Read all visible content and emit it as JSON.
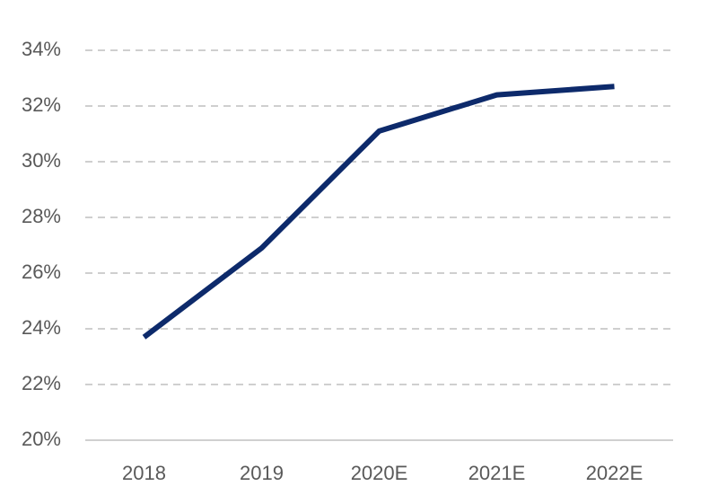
{
  "chart_data": {
    "type": "line",
    "categories": [
      "2018",
      "2019",
      "2020E",
      "2021E",
      "2022E"
    ],
    "series": [
      {
        "color": "#0d2a6b",
        "values": [
          23.7,
          26.9,
          31.1,
          32.4,
          32.7
        ]
      }
    ],
    "ylim": [
      20,
      34
    ],
    "yticks": [
      {
        "value": 20,
        "label": "20%"
      },
      {
        "value": 22,
        "label": "22%"
      },
      {
        "value": 24,
        "label": "24%"
      },
      {
        "value": 26,
        "label": "26%"
      },
      {
        "value": 28,
        "label": "28%"
      },
      {
        "value": 30,
        "label": "30%"
      },
      {
        "value": 32,
        "label": "32%"
      },
      {
        "value": 34,
        "label": "34%"
      }
    ],
    "grid": true
  }
}
